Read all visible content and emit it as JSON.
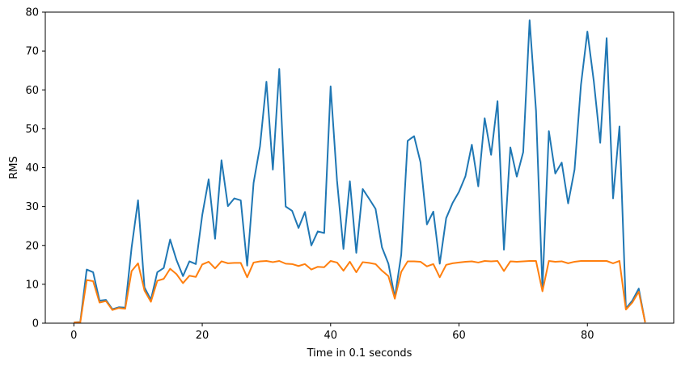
{
  "chart_data": {
    "type": "line",
    "title": "",
    "xlabel": "Time in 0.1 seconds",
    "ylabel": "RMS",
    "xlim": [
      -4.45,
      93.45
    ],
    "ylim": [
      0,
      80
    ],
    "xticks": [
      0,
      20,
      40,
      60,
      80
    ],
    "yticks": [
      0,
      10,
      20,
      30,
      40,
      50,
      60,
      70,
      80
    ],
    "grid": false,
    "legend": "none",
    "series": [
      {
        "color": "#1f77b4",
        "x": [
          0,
          1,
          2,
          3,
          4,
          5,
          6,
          7,
          8,
          9,
          10,
          11,
          12,
          13,
          14,
          15,
          16,
          17,
          18,
          19,
          20,
          21,
          22,
          23,
          24,
          25,
          26,
          27,
          28,
          29,
          30,
          31,
          32,
          33,
          34,
          35,
          36,
          37,
          38,
          39,
          40,
          41,
          42,
          43,
          44,
          45,
          46,
          47,
          48,
          49,
          50,
          51,
          52,
          53,
          54,
          55,
          56,
          57,
          58,
          59,
          60,
          61,
          62,
          63,
          64,
          65,
          66,
          67,
          68,
          69,
          70,
          71,
          72,
          73,
          74,
          75,
          76,
          77,
          78,
          79,
          80,
          81,
          82,
          83,
          84,
          85,
          86,
          87,
          88,
          89
        ],
        "values": [
          0.2,
          0.3,
          13.8,
          13.1,
          5.8,
          6.0,
          3.6,
          4.1,
          4.0,
          19.5,
          31.6,
          9.2,
          6.0,
          13.1,
          14.2,
          21.5,
          16.2,
          12.1,
          15.9,
          15.2,
          27.8,
          37.0,
          21.7,
          41.9,
          30.1,
          32.1,
          31.6,
          14.8,
          36.1,
          45.5,
          62.1,
          39.5,
          65.4,
          30.0,
          28.9,
          24.5,
          28.6,
          20.0,
          23.6,
          23.2,
          60.9,
          36.6,
          19.1,
          36.5,
          18.1,
          34.5,
          32.0,
          29.4,
          19.5,
          15.3,
          6.6,
          17.6,
          46.9,
          48.1,
          41.4,
          25.4,
          28.7,
          15.3,
          27.0,
          30.9,
          33.8,
          37.8,
          45.9,
          35.2,
          52.7,
          43.3,
          57.1,
          18.9,
          45.2,
          37.7,
          44.0,
          77.9,
          54.6,
          8.9,
          49.4,
          38.5,
          41.3,
          30.8,
          39.5,
          61.3,
          75.0,
          62.2,
          46.4,
          73.3,
          32.1,
          50.6,
          3.8,
          5.8,
          8.9,
          0.2
        ]
      },
      {
        "color": "#ff7f0e",
        "x": [
          0,
          1,
          2,
          3,
          4,
          5,
          6,
          7,
          8,
          9,
          10,
          11,
          12,
          13,
          14,
          15,
          16,
          17,
          18,
          19,
          20,
          21,
          22,
          23,
          24,
          25,
          26,
          27,
          28,
          29,
          30,
          31,
          32,
          33,
          34,
          35,
          36,
          37,
          38,
          39,
          40,
          41,
          42,
          43,
          44,
          45,
          46,
          47,
          48,
          49,
          50,
          51,
          52,
          53,
          54,
          55,
          56,
          57,
          58,
          59,
          60,
          61,
          62,
          63,
          64,
          65,
          66,
          67,
          68,
          69,
          70,
          71,
          72,
          73,
          74,
          75,
          76,
          77,
          78,
          79,
          80,
          81,
          82,
          83,
          84,
          85,
          86,
          87,
          88,
          89
        ],
        "values": [
          0.2,
          0.2,
          11.1,
          10.8,
          5.3,
          5.7,
          3.4,
          3.9,
          3.7,
          13.4,
          15.4,
          8.4,
          5.5,
          10.9,
          11.4,
          14.0,
          12.6,
          10.3,
          12.2,
          11.9,
          15.1,
          15.8,
          14.1,
          15.9,
          15.4,
          15.5,
          15.5,
          11.8,
          15.6,
          15.9,
          16.0,
          15.7,
          16.0,
          15.3,
          15.2,
          14.7,
          15.2,
          13.8,
          14.5,
          14.4,
          16.0,
          15.6,
          13.5,
          15.8,
          13.1,
          15.7,
          15.5,
          15.2,
          13.5,
          12.1,
          6.3,
          13.2,
          15.9,
          15.9,
          15.8,
          14.6,
          15.2,
          11.8,
          15.0,
          15.4,
          15.6,
          15.8,
          15.9,
          15.6,
          16.0,
          15.9,
          16.0,
          13.4,
          15.9,
          15.8,
          15.9,
          16.0,
          16.0,
          8.2,
          16.0,
          15.8,
          15.9,
          15.4,
          15.8,
          16.0,
          16.0,
          16.0,
          16.0,
          16.0,
          15.4,
          16.0,
          3.5,
          5.3,
          8.1,
          0.2
        ]
      }
    ]
  }
}
